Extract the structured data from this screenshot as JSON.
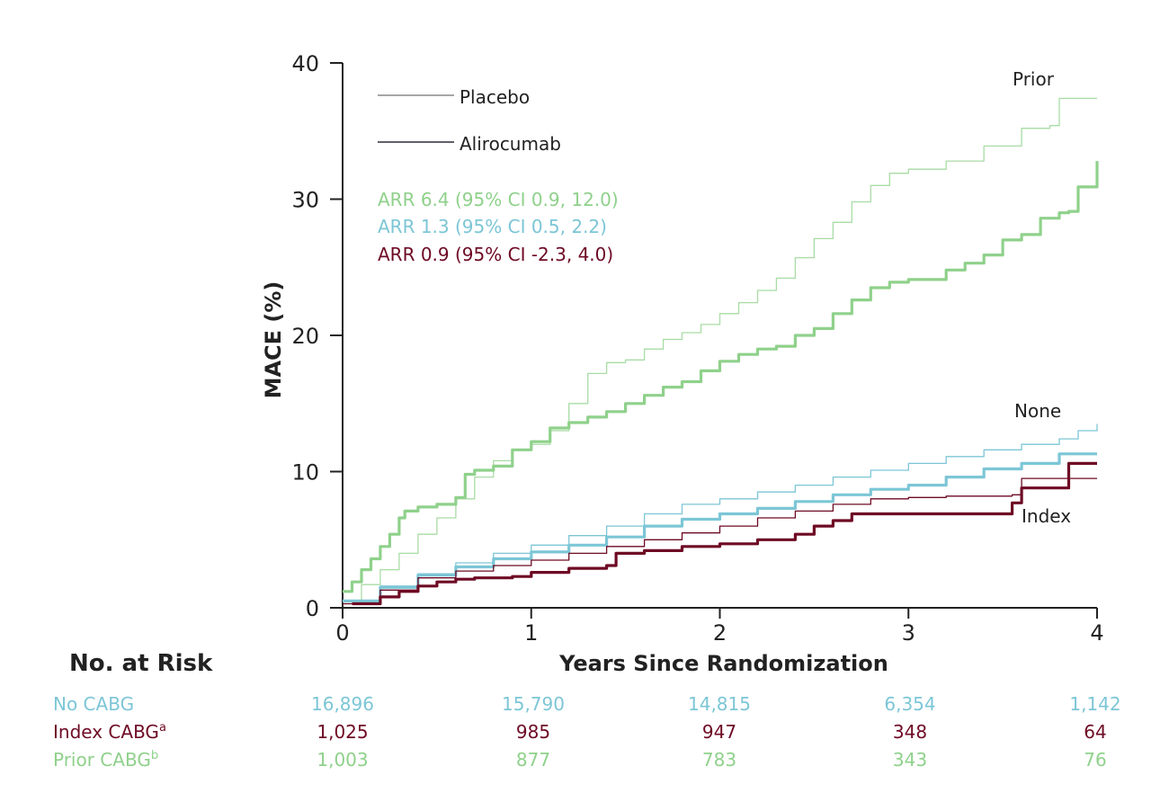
{
  "chart_data": {
    "type": "line",
    "xlabel": "Years Since Randomization",
    "ylabel": "MACE (%)",
    "xlim": [
      0,
      4
    ],
    "ylim": [
      0,
      40
    ],
    "xticks": [
      "0",
      "1",
      "2",
      "3",
      "4"
    ],
    "yticks": [
      "0",
      "10",
      "20",
      "30",
      "40"
    ],
    "legend": [
      {
        "label": "Placebo",
        "style": "thin",
        "color": "#888888"
      },
      {
        "label": "Alirocumab",
        "style": "thin",
        "color": "#2b2b3c"
      }
    ],
    "annotations": [
      {
        "text": "ARR 6.4 (95% CI 0.9, 12.0)",
        "color": "#8fd18b"
      },
      {
        "text": "ARR 1.3 (95% CI 0.5, 2.2)",
        "color": "#7cc6d6"
      },
      {
        "text": "ARR 0.9 (95% CI -2.3, 4.0)",
        "color": "#6e0a24"
      }
    ],
    "curve_labels": [
      "Prior",
      "None",
      "Index"
    ],
    "series": [
      {
        "group": "Prior",
        "arm": "Placebo",
        "color": "#a8dca4",
        "width": 1.3,
        "x": [
          0,
          0.1,
          0.2,
          0.3,
          0.4,
          0.5,
          0.6,
          0.7,
          0.8,
          0.9,
          1.0,
          1.1,
          1.2,
          1.3,
          1.4,
          1.5,
          1.6,
          1.7,
          1.8,
          1.9,
          2.0,
          2.1,
          2.2,
          2.3,
          2.4,
          2.5,
          2.6,
          2.7,
          2.8,
          2.9,
          3.0,
          3.2,
          3.4,
          3.6,
          3.75,
          3.8,
          4.0
        ],
        "y": [
          0.3,
          1.7,
          2.8,
          4.0,
          5.4,
          6.6,
          8.0,
          9.6,
          10.8,
          11.6,
          12.0,
          13.0,
          15.0,
          17.2,
          18.0,
          18.2,
          19.0,
          19.7,
          20.2,
          20.8,
          21.6,
          22.4,
          23.3,
          24.2,
          25.7,
          27.1,
          28.3,
          29.8,
          31.0,
          31.9,
          32.2,
          32.8,
          33.9,
          35.2,
          35.4,
          37.4,
          37.4
        ]
      },
      {
        "group": "Prior",
        "arm": "Alirocumab",
        "color": "#8fd18b",
        "width": 3.2,
        "x": [
          0,
          0.05,
          0.1,
          0.15,
          0.2,
          0.25,
          0.3,
          0.33,
          0.4,
          0.5,
          0.6,
          0.65,
          0.7,
          0.8,
          0.9,
          1.0,
          1.1,
          1.2,
          1.3,
          1.4,
          1.5,
          1.6,
          1.7,
          1.8,
          1.9,
          2.0,
          2.1,
          2.2,
          2.3,
          2.4,
          2.5,
          2.6,
          2.7,
          2.8,
          2.9,
          3.0,
          3.2,
          3.3,
          3.4,
          3.5,
          3.6,
          3.7,
          3.8,
          3.85,
          3.9,
          4.0
        ],
        "y": [
          1.2,
          1.9,
          2.8,
          3.6,
          4.5,
          5.4,
          6.6,
          7.1,
          7.4,
          7.6,
          8.1,
          9.8,
          10.1,
          10.4,
          11.6,
          12.2,
          13.2,
          13.6,
          14.0,
          14.4,
          15.0,
          15.6,
          16.2,
          16.6,
          17.4,
          18.1,
          18.6,
          19.0,
          19.2,
          20.0,
          20.5,
          21.6,
          22.6,
          23.5,
          23.9,
          24.1,
          24.8,
          25.3,
          25.9,
          27.0,
          27.4,
          28.6,
          29.0,
          29.1,
          30.9,
          32.8
        ]
      },
      {
        "group": "None",
        "arm": "Placebo",
        "color": "#7cc6d6",
        "width": 1.3,
        "x": [
          0,
          0.2,
          0.4,
          0.6,
          0.8,
          1.0,
          1.2,
          1.4,
          1.6,
          1.8,
          2.0,
          2.2,
          2.4,
          2.6,
          2.8,
          3.0,
          3.2,
          3.4,
          3.6,
          3.8,
          3.9,
          4.0
        ],
        "y": [
          0.5,
          1.6,
          2.5,
          3.3,
          4.0,
          4.6,
          5.3,
          6.0,
          6.9,
          7.6,
          8.0,
          8.5,
          9.0,
          9.6,
          10.1,
          10.6,
          11.1,
          11.6,
          12.0,
          12.4,
          13.0,
          13.5
        ]
      },
      {
        "group": "None",
        "arm": "Alirocumab",
        "color": "#7cc6d6",
        "width": 3.2,
        "x": [
          0,
          0.2,
          0.4,
          0.6,
          0.8,
          1.0,
          1.2,
          1.4,
          1.6,
          1.8,
          2.0,
          2.2,
          2.4,
          2.6,
          2.8,
          3.0,
          3.2,
          3.4,
          3.6,
          3.8,
          4.0
        ],
        "y": [
          0.5,
          1.5,
          2.4,
          3.0,
          3.6,
          4.1,
          4.6,
          5.2,
          6.0,
          6.5,
          6.9,
          7.3,
          7.8,
          8.3,
          8.7,
          9.0,
          9.6,
          10.2,
          10.6,
          11.3,
          11.3
        ]
      },
      {
        "group": "Index",
        "arm": "Placebo",
        "color": "#6e0a24",
        "width": 1.3,
        "x": [
          0,
          0.2,
          0.4,
          0.6,
          0.8,
          1.0,
          1.2,
          1.4,
          1.6,
          1.8,
          2.0,
          2.2,
          2.4,
          2.6,
          2.8,
          3.0,
          3.2,
          3.4,
          3.55,
          3.6,
          4.0
        ],
        "y": [
          0.3,
          1.3,
          2.2,
          2.7,
          3.1,
          3.5,
          4.0,
          4.5,
          5.0,
          5.5,
          6.0,
          6.6,
          7.1,
          7.6,
          8.0,
          8.1,
          8.2,
          8.2,
          8.3,
          9.5,
          9.5
        ]
      },
      {
        "group": "Index",
        "arm": "Alirocumab",
        "color": "#6e0a24",
        "width": 3.2,
        "x": [
          0.05,
          0.2,
          0.3,
          0.4,
          0.5,
          0.6,
          0.7,
          0.9,
          1.0,
          1.2,
          1.4,
          1.45,
          1.6,
          1.8,
          2.0,
          2.2,
          2.4,
          2.5,
          2.6,
          2.7,
          2.8,
          3.0,
          3.2,
          3.4,
          3.55,
          3.6,
          3.8,
          3.85,
          4.0
        ],
        "y": [
          0.3,
          0.8,
          1.2,
          1.6,
          1.9,
          2.1,
          2.2,
          2.3,
          2.6,
          2.9,
          3.1,
          4.0,
          4.2,
          4.5,
          4.7,
          5.0,
          5.4,
          6.0,
          6.4,
          6.9,
          6.9,
          6.9,
          6.9,
          6.9,
          7.7,
          8.8,
          8.8,
          10.6,
          10.6
        ]
      }
    ],
    "risk_table": {
      "title": "No. at Risk",
      "rows": [
        {
          "label": "No CABG",
          "sup": "",
          "color": "#7cc6d6",
          "values": [
            "16,896",
            "15,790",
            "14,815",
            "6,354",
            "1,142"
          ]
        },
        {
          "label": "Index CABG",
          "sup": "a",
          "color": "#6e0a24",
          "values": [
            "1,025",
            "985",
            "947",
            "348",
            "64"
          ]
        },
        {
          "label": "Prior CABG",
          "sup": "b",
          "color": "#8fd18b",
          "values": [
            "1,003",
            "877",
            "783",
            "343",
            "76"
          ]
        }
      ]
    }
  }
}
